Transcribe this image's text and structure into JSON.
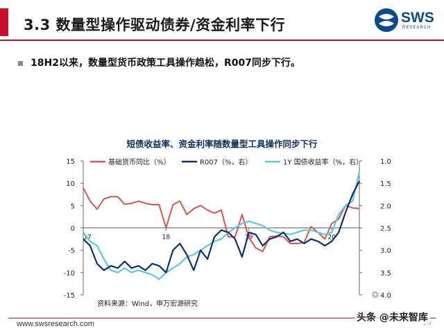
{
  "header": {
    "title": "3.3 数量型操作驱动债券/资金利率下行",
    "logo_text": "SWS",
    "logo_sub": "RESEARCH"
  },
  "bullet": {
    "text": "18H2以来，数量型货币政策工具操作趋松，R007同步下行。"
  },
  "footer": {
    "url": "www.swsresearch.com",
    "page": "36",
    "watermark": "头条 @未来智库"
  },
  "colors": {
    "accent_red": "#c8102e",
    "brand_blue": "#0b4a8b",
    "series_base": "#d9534f",
    "series_r007": "#0d2e6e",
    "series_1y": "#5ec6e0"
  },
  "chart_data": {
    "type": "line",
    "title": "短债收益率、资金利率随数量型工具操作同步下行",
    "source": "资料来源：Wind，申万宏源研究",
    "x_tick_labels": [
      {
        "idx": 0,
        "label": "17"
      },
      {
        "idx": 12,
        "label": "18"
      },
      {
        "idx": 24,
        "label": "19"
      },
      {
        "idx": 36,
        "label": "20"
      }
    ],
    "left_axis": {
      "min": -15,
      "max": 15,
      "ticks": [
        "15",
        "10",
        "5",
        "0",
        "-5",
        "-10",
        "-15"
      ]
    },
    "right_axis": {
      "min": 1.0,
      "max": 4.0,
      "reversed": true,
      "ticks": [
        "1.0",
        "1.5",
        "2.0",
        "2.5",
        "3.0",
        "3.5",
        "4.0"
      ]
    },
    "legend": [
      "基础货币同比（%）",
      "R007（%，右）",
      "1Y 国债收益率（%，右）"
    ],
    "series": [
      {
        "name": "基础货币同比（%）",
        "axis": "left",
        "x": [
          0,
          1,
          2,
          3,
          4,
          5,
          6,
          7,
          8,
          9,
          10,
          11,
          12,
          13,
          14,
          15,
          16,
          17,
          18,
          19,
          20,
          21,
          22,
          23,
          24,
          25,
          26,
          27,
          28,
          29,
          30,
          31,
          32,
          33,
          34,
          35,
          36,
          37,
          38,
          39,
          40
        ],
        "values": [
          9,
          6,
          4.2,
          6.5,
          7,
          7,
          5.3,
          5.5,
          6,
          5.5,
          5.2,
          5.2,
          0,
          5.2,
          6,
          3,
          4.3,
          5,
          4,
          3.3,
          4,
          -2,
          -2,
          3,
          -2.2,
          -4.5,
          -5.3,
          -2,
          -1.8,
          -2,
          -3.5,
          -3.5,
          -3.3,
          0.3,
          -1,
          -2.5,
          1,
          2,
          5,
          4.5,
          4.3
        ]
      },
      {
        "name": "R007（%，右）",
        "axis": "right",
        "x": [
          0,
          1,
          2,
          3,
          4,
          5,
          6,
          7,
          8,
          9,
          10,
          11,
          12,
          13,
          14,
          15,
          16,
          17,
          18,
          19,
          20,
          21,
          22,
          23,
          24,
          25,
          26,
          27,
          28,
          29,
          30,
          31,
          32,
          33,
          34,
          35,
          36,
          37,
          38,
          39,
          40
        ],
        "values": [
          2.75,
          2.9,
          3.3,
          3.45,
          3.35,
          3.4,
          3.25,
          3.4,
          3.35,
          3.45,
          3.3,
          3.35,
          3.5,
          3.0,
          2.85,
          3.1,
          3.45,
          3.0,
          3.2,
          2.7,
          2.55,
          2.6,
          2.75,
          3.15,
          2.6,
          2.65,
          2.9,
          2.75,
          2.7,
          2.6,
          2.8,
          2.75,
          2.85,
          2.75,
          2.8,
          2.9,
          2.8,
          2.6,
          2.15,
          1.75,
          1.45
        ]
      },
      {
        "name": "1Y 国债收益率（%，右）",
        "axis": "right",
        "x": [
          0,
          1,
          2,
          3,
          4,
          5,
          6,
          7,
          8,
          9,
          10,
          11,
          12,
          13,
          14,
          15,
          16,
          17,
          18,
          19,
          20,
          21,
          22,
          23,
          24,
          25,
          26,
          27,
          28,
          29,
          30,
          31,
          32,
          33,
          34,
          35,
          36,
          37,
          38,
          39,
          40
        ],
        "values": [
          2.6,
          2.8,
          2.9,
          3.2,
          3.45,
          3.5,
          3.4,
          3.5,
          3.45,
          3.5,
          3.55,
          3.65,
          3.5,
          3.4,
          3.3,
          3.15,
          3.1,
          3.0,
          2.9,
          2.8,
          2.75,
          2.6,
          2.5,
          2.4,
          2.35,
          2.4,
          2.45,
          2.55,
          2.6,
          2.62,
          2.65,
          2.6,
          2.55,
          2.55,
          2.6,
          2.65,
          2.6,
          2.2,
          2.0,
          1.9,
          1.25
        ]
      }
    ]
  }
}
